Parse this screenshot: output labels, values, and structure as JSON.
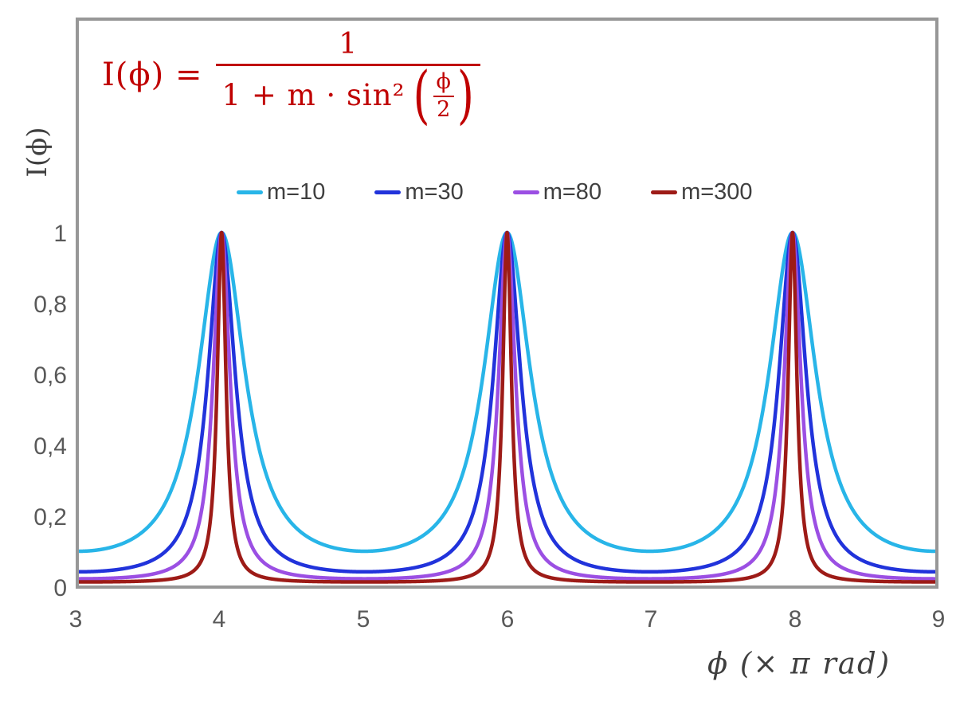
{
  "formula": {
    "lhs": "I(ϕ) =",
    "numerator": "1",
    "denominator_prefix": "1 + m · sin²",
    "paren_open": "(",
    "inner_numerator": "ϕ",
    "inner_denominator": "2",
    "paren_close": ")",
    "color": "#c00000"
  },
  "chart_data": {
    "type": "line",
    "title": "",
    "xlabel": "ϕ  (× π rad)",
    "ylabel": "I(ϕ)",
    "xlim": [
      3,
      9
    ],
    "ylim": [
      0,
      1
    ],
    "x_ticks": [
      3,
      4,
      5,
      6,
      7,
      8,
      9
    ],
    "x_tick_labels": [
      "3",
      "4",
      "5",
      "6",
      "7",
      "8",
      "9"
    ],
    "y_ticks": [
      1,
      0.8,
      0.6,
      0.4,
      0.2,
      0
    ],
    "y_tick_labels": [
      "1",
      "0,8",
      "0,6",
      "0,4",
      "0,2",
      "0"
    ],
    "grid": false,
    "legend_position": "top-center",
    "function": "I(x) = 1 / (1 + m·sin²(x·π/2)), x in units of π rad",
    "peaks_at_x": [
      4,
      6,
      8
    ],
    "peak_value": 1,
    "series": [
      {
        "name": "m=10",
        "m": 10,
        "color": "#28b5e8"
      },
      {
        "name": "m=30",
        "m": 30,
        "color": "#2133db"
      },
      {
        "name": "m=80",
        "m": 80,
        "color": "#9b4fe3"
      },
      {
        "name": "m=300",
        "m": 300,
        "color": "#9d1b17"
      }
    ],
    "style": {
      "frame_color": "#979797",
      "tick_text_color": "#595959",
      "axis_title_color": "#3f3f3f",
      "legend_text_color": "#3f3f3f",
      "formula_color": "#c00000",
      "line_width": 4.5
    }
  }
}
